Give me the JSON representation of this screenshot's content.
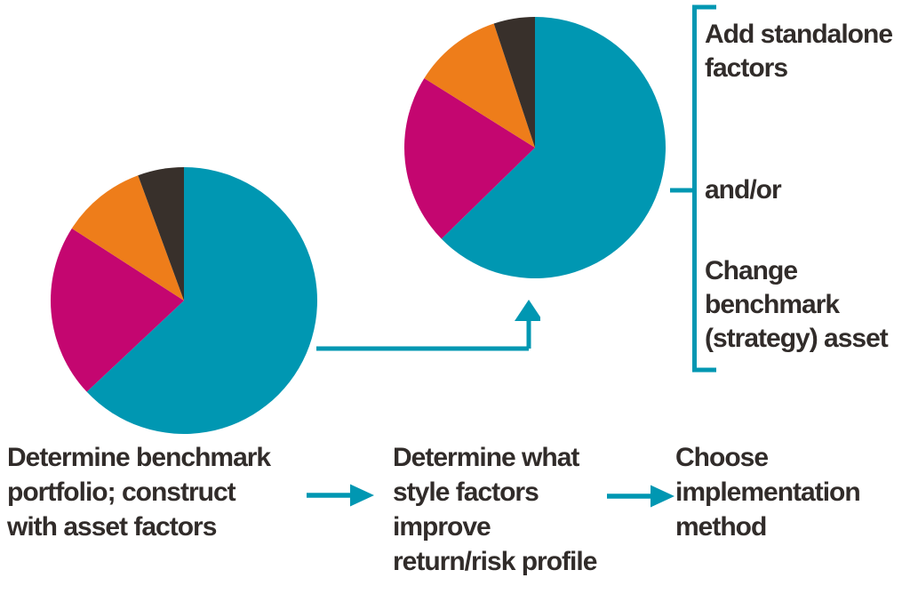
{
  "figure": {
    "description": "Three-step factor investing process flow with two pie charts",
    "background_color": "#ffffff",
    "accent_color": "#0097b2",
    "text_color": "#312c2a"
  },
  "colors": {
    "teal": "#0097b2",
    "magenta": "#c40670",
    "orange": "#ee7d1a",
    "dark": "#38302b"
  },
  "chart_data": [
    {
      "type": "pie",
      "name": "benchmark-portfolio-pie",
      "start_angle_deg": 0,
      "direction": "clockwise",
      "labels_shown": false,
      "segments": [
        {
          "name": "teal",
          "value": 63.0,
          "color": "#0097b2"
        },
        {
          "name": "magenta",
          "value": 21.1,
          "color": "#c40670"
        },
        {
          "name": "orange",
          "value": 10.3,
          "color": "#ee7d1a"
        },
        {
          "name": "dark",
          "value": 5.6,
          "color": "#38302b"
        }
      ]
    },
    {
      "type": "pie",
      "name": "style-adjusted-portfolio-pie",
      "start_angle_deg": 0,
      "direction": "clockwise",
      "labels_shown": false,
      "segments": [
        {
          "name": "teal",
          "value": 62.7,
          "color": "#0097b2"
        },
        {
          "name": "magenta",
          "value": 21.2,
          "color": "#c40670"
        },
        {
          "name": "orange",
          "value": 11.0,
          "color": "#ee7d1a"
        },
        {
          "name": "dark",
          "value": 5.1,
          "color": "#38302b"
        }
      ]
    }
  ],
  "steps": [
    {
      "label": "Determine benchmark\nportfolio; construct\nwith asset factors"
    },
    {
      "label": "Determine what\nstyle factors\nimprove\nreturn/risk profile"
    },
    {
      "label": "Choose\nimplementation\nmethod"
    }
  ],
  "bracket_options": {
    "top": "Add standalone\nfactors",
    "middle": "and/or",
    "bottom": "Change\nbenchmark\n(strategy) asset"
  }
}
